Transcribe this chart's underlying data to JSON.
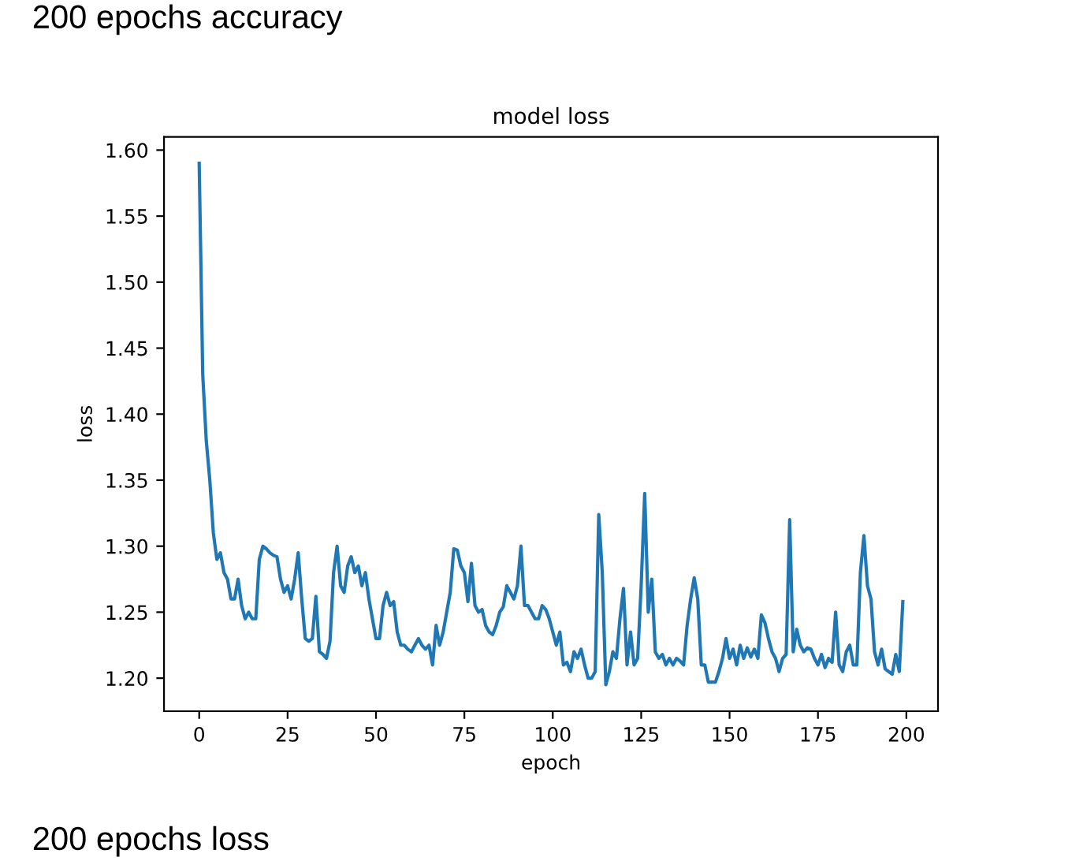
{
  "chart_data": {
    "type": "line",
    "title": "model loss",
    "xlabel": "epoch",
    "ylabel": "loss",
    "annotations": [
      "200 epochs accuracy",
      "200 epochs loss"
    ],
    "x": [
      0,
      1,
      2,
      3,
      4,
      5,
      6,
      7,
      8,
      9,
      10,
      11,
      12,
      13,
      14,
      15,
      16,
      17,
      18,
      19,
      20,
      21,
      22,
      23,
      24,
      25,
      26,
      27,
      28,
      29,
      30,
      31,
      32,
      33,
      34,
      35,
      36,
      37,
      38,
      39,
      40,
      41,
      42,
      43,
      44,
      45,
      46,
      47,
      48,
      49,
      50,
      51,
      52,
      53,
      54,
      55,
      56,
      57,
      58,
      59,
      60,
      61,
      62,
      63,
      64,
      65,
      66,
      67,
      68,
      69,
      70,
      71,
      72,
      73,
      74,
      75,
      76,
      77,
      78,
      79,
      80,
      81,
      82,
      83,
      84,
      85,
      86,
      87,
      88,
      89,
      90,
      91,
      92,
      93,
      94,
      95,
      96,
      97,
      98,
      99,
      100,
      101,
      102,
      103,
      104,
      105,
      106,
      107,
      108,
      109,
      110,
      111,
      112,
      113,
      114,
      115,
      116,
      117,
      118,
      119,
      120,
      121,
      122,
      123,
      124,
      125,
      126,
      127,
      128,
      129,
      130,
      131,
      132,
      133,
      134,
      135,
      136,
      137,
      138,
      139,
      140,
      141,
      142,
      143,
      144,
      145,
      146,
      147,
      148,
      149,
      150,
      151,
      152,
      153,
      154,
      155,
      156,
      157,
      158,
      159,
      160,
      161,
      162,
      163,
      164,
      165,
      166,
      167,
      168,
      169,
      170,
      171,
      172,
      173,
      174,
      175,
      176,
      177,
      178,
      179,
      180,
      181,
      182,
      183,
      184,
      185,
      186,
      187,
      188,
      189,
      190,
      191,
      192,
      193,
      194,
      195,
      196,
      197,
      198,
      199
    ],
    "series": [
      {
        "color": "#1f77b4",
        "values": [
          1.59,
          1.43,
          1.38,
          1.35,
          1.31,
          1.29,
          1.295,
          1.28,
          1.275,
          1.26,
          1.26,
          1.275,
          1.255,
          1.245,
          1.25,
          1.245,
          1.245,
          1.29,
          1.3,
          1.298,
          1.295,
          1.293,
          1.292,
          1.275,
          1.265,
          1.27,
          1.26,
          1.275,
          1.295,
          1.26,
          1.23,
          1.228,
          1.23,
          1.262,
          1.22,
          1.218,
          1.215,
          1.228,
          1.28,
          1.3,
          1.27,
          1.265,
          1.285,
          1.292,
          1.28,
          1.285,
          1.27,
          1.28,
          1.26,
          1.245,
          1.23,
          1.23,
          1.255,
          1.265,
          1.255,
          1.258,
          1.235,
          1.225,
          1.225,
          1.222,
          1.22,
          1.225,
          1.23,
          1.225,
          1.222,
          1.225,
          1.21,
          1.24,
          1.225,
          1.235,
          1.25,
          1.265,
          1.298,
          1.297,
          1.285,
          1.28,
          1.258,
          1.287,
          1.255,
          1.25,
          1.252,
          1.24,
          1.235,
          1.233,
          1.24,
          1.25,
          1.254,
          1.27,
          1.265,
          1.26,
          1.27,
          1.3,
          1.255,
          1.255,
          1.25,
          1.245,
          1.245,
          1.255,
          1.252,
          1.245,
          1.235,
          1.225,
          1.235,
          1.21,
          1.212,
          1.205,
          1.22,
          1.215,
          1.222,
          1.21,
          1.2,
          1.2,
          1.205,
          1.324,
          1.28,
          1.195,
          1.205,
          1.22,
          1.215,
          1.245,
          1.268,
          1.21,
          1.235,
          1.21,
          1.215,
          1.27,
          1.34,
          1.25,
          1.275,
          1.22,
          1.215,
          1.218,
          1.21,
          1.215,
          1.21,
          1.215,
          1.213,
          1.21,
          1.24,
          1.26,
          1.276,
          1.26,
          1.21,
          1.21,
          1.197,
          1.197,
          1.197,
          1.205,
          1.215,
          1.23,
          1.215,
          1.222,
          1.21,
          1.225,
          1.215,
          1.223,
          1.216,
          1.222,
          1.215,
          1.248,
          1.242,
          1.23,
          1.22,
          1.215,
          1.205,
          1.215,
          1.218,
          1.32,
          1.22,
          1.237,
          1.225,
          1.22,
          1.223,
          1.222,
          1.215,
          1.21,
          1.218,
          1.208,
          1.215,
          1.212,
          1.25,
          1.21,
          1.205,
          1.22,
          1.225,
          1.21,
          1.21,
          1.28,
          1.308,
          1.27,
          1.26,
          1.22,
          1.21,
          1.222,
          1.207,
          1.205,
          1.203,
          1.218,
          1.205,
          1.258
        ]
      }
    ],
    "xlim": [
      -9.95,
      208.95
    ],
    "ylim": [
      1.175,
      1.61
    ],
    "xticks": [
      0,
      25,
      50,
      75,
      100,
      125,
      150,
      175,
      200
    ],
    "yticks": [
      {
        "value": 1.2,
        "label": "1.20"
      },
      {
        "value": 1.25,
        "label": "1.25"
      },
      {
        "value": 1.3,
        "label": "1.30"
      },
      {
        "value": 1.35,
        "label": "1.35"
      },
      {
        "value": 1.4,
        "label": "1.40"
      },
      {
        "value": 1.45,
        "label": "1.45"
      },
      {
        "value": 1.5,
        "label": "1.50"
      },
      {
        "value": 1.55,
        "label": "1.55"
      },
      {
        "value": 1.6,
        "label": "1.60"
      }
    ],
    "grid": false,
    "legend": false
  }
}
